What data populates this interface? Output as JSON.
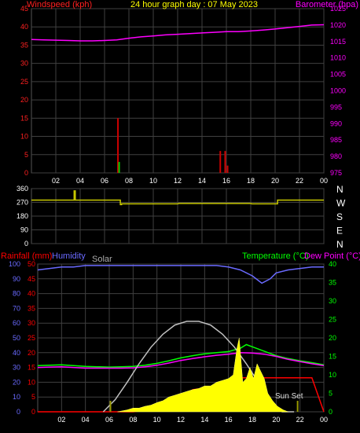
{
  "header": {
    "title": "24 hour graph day : 07 May 2023",
    "windspeed_label": "Windspeed (kph)",
    "barometer_label": "Barometer (hpa)"
  },
  "colors": {
    "windspeed": "#ff2020",
    "barometer": "#ff00ff",
    "title": "#ffff00",
    "humidity": "#6a6aff",
    "temperature": "#00ff00",
    "dewpoint": "#ff00ff",
    "rainfall": "#ff0000",
    "solar": "#c0c0c0",
    "solar_fill": "#ffff00",
    "direction": "#c8c800",
    "axis": "#ffffff",
    "grid": "#404040"
  },
  "time_ticks": [
    "02",
    "04",
    "06",
    "08",
    "10",
    "12",
    "14",
    "16",
    "18",
    "20",
    "22",
    "00"
  ],
  "chart_data": [
    {
      "type": "line",
      "title": "24 hour graph day : 07 May 2023",
      "x_range": [
        0,
        24
      ],
      "left_axis": {
        "label": "Windspeed (kph)",
        "ticks": [
          "0",
          "5",
          "10",
          "15",
          "20",
          "25",
          "30",
          "35",
          "40",
          "45"
        ],
        "range": [
          0,
          45
        ]
      },
      "right_axis": {
        "label": "Barometer (hpa)",
        "ticks": [
          "975",
          "980",
          "985",
          "990",
          "995",
          "1000",
          "1005",
          "1010",
          "1015",
          "1020",
          "1025"
        ],
        "range": [
          975,
          1025
        ]
      },
      "series": [
        {
          "name": "Barometer (hpa)",
          "axis": "right",
          "x": [
            0,
            1,
            2,
            3,
            4,
            5,
            6,
            7,
            8,
            9,
            10,
            11,
            12,
            13,
            14,
            15,
            16,
            17,
            18,
            19,
            20,
            21,
            22,
            23,
            24
          ],
          "y": [
            1015.6,
            1015.5,
            1015.4,
            1015.3,
            1015.2,
            1015.2,
            1015.3,
            1015.5,
            1016.0,
            1016.4,
            1016.7,
            1017.0,
            1017.2,
            1017.4,
            1017.6,
            1017.8,
            1018.0,
            1018.0,
            1018.2,
            1018.5,
            1018.8,
            1019.2,
            1019.6,
            1020.0,
            1020.1
          ]
        },
        {
          "name": "Windspeed (kph)",
          "axis": "left",
          "style": "bars",
          "x": [
            7.1,
            15.5,
            15.9,
            16.1
          ],
          "y": [
            15,
            6,
            6,
            2
          ]
        },
        {
          "name": "Gust",
          "axis": "left",
          "style": "bars-green",
          "x": [
            7.2
          ],
          "y": [
            3
          ]
        }
      ]
    },
    {
      "type": "line",
      "x_range": [
        0,
        24
      ],
      "left_axis": {
        "ticks": [
          "0",
          "90",
          "180",
          "270",
          "360"
        ],
        "range": [
          0,
          360
        ]
      },
      "right_axis": {
        "ticks": [
          "N",
          "E",
          "S",
          "W",
          "N"
        ]
      },
      "series": [
        {
          "name": "Wind direction",
          "x": [
            0,
            3.5,
            3.5,
            3.6,
            3.6,
            7.3,
            7.3,
            7.4,
            7.4,
            12,
            12.1,
            18,
            18.1,
            20.2,
            20.2,
            24
          ],
          "y": [
            285,
            285,
            345,
            345,
            285,
            285,
            255,
            255,
            260,
            260,
            263,
            263,
            260,
            260,
            285,
            285
          ]
        }
      ]
    },
    {
      "type": "area",
      "x_range": [
        0,
        24
      ],
      "left_axis_humidity": {
        "label": "Humidity",
        "ticks": [
          "0",
          "10",
          "20",
          "30",
          "40",
          "50",
          "60",
          "70",
          "80",
          "90",
          "100"
        ],
        "range": [
          0,
          100
        ]
      },
      "left_axis_rainfall": {
        "label": "Rainfall (mm)",
        "ticks": [
          "0",
          "5",
          "10",
          "15",
          "20",
          "25",
          "30",
          "35",
          "40",
          "45",
          "50"
        ],
        "range": [
          0,
          50
        ]
      },
      "right_axis": {
        "label": "Temperature (°C)",
        "ticks": [
          "0",
          "5",
          "10",
          "15",
          "20",
          "25",
          "30",
          "35",
          "40"
        ],
        "range": [
          0,
          40
        ]
      },
      "solar_label": "Solar",
      "dewpoint_label": "Dew Point (°C)",
      "annotation": "Sun Set",
      "series": [
        {
          "name": "Humidity",
          "axis": "humidity",
          "x": [
            0,
            1,
            2,
            3,
            4,
            5,
            6,
            7,
            8,
            9,
            10,
            11,
            12,
            13,
            14,
            15,
            16,
            17,
            18,
            18.8,
            19.5,
            20,
            21,
            22,
            23,
            24
          ],
          "y": [
            96,
            97,
            98,
            98,
            99,
            99,
            99,
            99,
            99,
            99,
            99,
            99,
            99,
            99,
            99,
            99,
            98,
            96,
            92,
            87,
            90,
            94,
            96,
            97,
            98,
            98
          ]
        },
        {
          "name": "Temperature (°C)",
          "axis": "temperature",
          "x": [
            0,
            1,
            2,
            3,
            4,
            5,
            6,
            7,
            8,
            9,
            10,
            11,
            12,
            13,
            14,
            15,
            16,
            17,
            17.5,
            18,
            19,
            20,
            21,
            22,
            23,
            24
          ],
          "y": [
            12.5,
            12.6,
            12.7,
            12.5,
            12.3,
            12.2,
            12.1,
            12.2,
            12.3,
            12.6,
            13.1,
            13.8,
            14.6,
            15.2,
            15.7,
            16.0,
            16.3,
            17.2,
            18.2,
            17.6,
            16.4,
            15.2,
            14.4,
            13.8,
            13.3,
            12.7
          ]
        },
        {
          "name": "Dew Point (°C)",
          "axis": "temperature",
          "x": [
            0,
            1,
            2,
            3,
            4,
            5,
            6,
            7,
            8,
            9,
            10,
            11,
            12,
            13,
            14,
            15,
            16,
            17,
            18,
            19,
            20,
            21,
            22,
            23,
            24
          ],
          "y": [
            12.0,
            12.1,
            12.2,
            12.0,
            11.8,
            11.8,
            11.8,
            11.8,
            11.9,
            12.2,
            12.6,
            13.2,
            13.9,
            14.4,
            14.9,
            15.3,
            15.6,
            16.0,
            15.9,
            15.6,
            15.0,
            14.2,
            13.6,
            13.0,
            12.5
          ]
        },
        {
          "name": "Rainfall (mm)",
          "axis": "rainfall",
          "x": [
            0,
            5,
            6,
            7,
            8,
            9,
            10,
            11,
            12,
            12.5,
            13,
            14,
            15,
            16,
            16.8,
            17,
            18,
            19,
            20,
            21,
            22,
            23,
            24
          ],
          "y": [
            0,
            0,
            0,
            0,
            0,
            0.5,
            1.2,
            2.5,
            4,
            6,
            7.5,
            8,
            8.4,
            9,
            9.4,
            11.5,
            11.5,
            11.5,
            11.5,
            11.5,
            11.5,
            11.5,
            0
          ]
        },
        {
          "name": "Solar",
          "axis": "temperature",
          "x": [
            5.5,
            6.5,
            7.5,
            8.5,
            9.5,
            10.5,
            11.5,
            12.5,
            13.5,
            14.5,
            15.5,
            16.5,
            17.5,
            18.5,
            19.5,
            20.5,
            21.5
          ],
          "y": [
            0,
            3.3,
            8,
            13,
            17.5,
            21,
            23.5,
            24.5,
            24.5,
            23.5,
            21,
            17.5,
            13,
            8,
            3.3,
            0,
            0
          ]
        },
        {
          "name": "Solar (measured)",
          "axis": "temperature",
          "style": "filled",
          "x": [
            6.7,
            7.5,
            8,
            8.5,
            9,
            9.5,
            10,
            10.5,
            11,
            11.5,
            12,
            12.5,
            13,
            13.5,
            14,
            14.5,
            15,
            15.5,
            16,
            16.4,
            16.7,
            16.9,
            17.2,
            17.5,
            17.8,
            18.1,
            18.4,
            18.7,
            19,
            19.3,
            19.7,
            20.1,
            20.6,
            21
          ],
          "y": [
            0,
            0.5,
            1,
            1,
            1.5,
            1.8,
            2.5,
            3,
            4,
            4.5,
            5,
            5.5,
            6,
            6.3,
            7,
            7,
            8,
            8.5,
            9,
            10,
            17,
            20,
            8,
            9,
            12,
            9,
            13,
            11,
            9,
            5,
            3,
            1.5,
            0.5,
            0
          ]
        }
      ]
    }
  ]
}
